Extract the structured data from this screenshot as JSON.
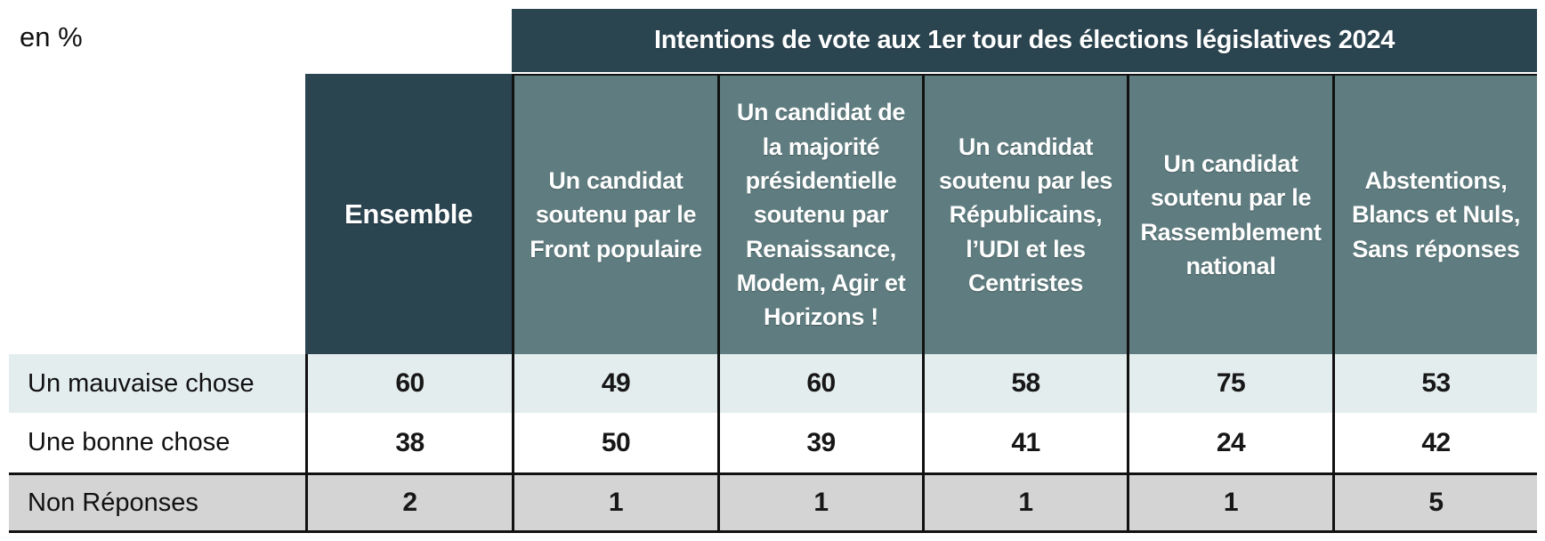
{
  "page": {
    "unit_label": "en %"
  },
  "colors": {
    "header_dark": "#2a4450",
    "header_teal": "#5f7d80",
    "row_light_blue": "#e4edee",
    "row_white": "#ffffff",
    "row_gray": "#d4d4d4",
    "border_black": "#111111",
    "header_text": "#ffffff",
    "body_text": "#1a1a1a"
  },
  "chart_data": {
    "type": "table",
    "title": "Intentions de vote aux 1er tour des élections législatives 2024",
    "unit": "en %",
    "columns": [
      "Ensemble",
      "Un candidat soutenu par le Front populaire",
      "Un candidat de la majorité présidentielle soutenu par Renaissance, Modem, Agir et Horizons !",
      "Un candidat soutenu par les Républicains, l’UDI et les Centristes",
      "Un candidat soutenu par le Rassemblement national",
      "Abstentions, Blancs et Nuls, Sans réponses"
    ],
    "rows": [
      {
        "label": "Un mauvaise chose",
        "values": [
          60,
          49,
          60,
          58,
          75,
          53
        ]
      },
      {
        "label": "Une bonne chose",
        "values": [
          38,
          50,
          39,
          41,
          24,
          42
        ]
      },
      {
        "label": "Non Réponses",
        "values": [
          2,
          1,
          1,
          1,
          1,
          5
        ]
      }
    ]
  }
}
